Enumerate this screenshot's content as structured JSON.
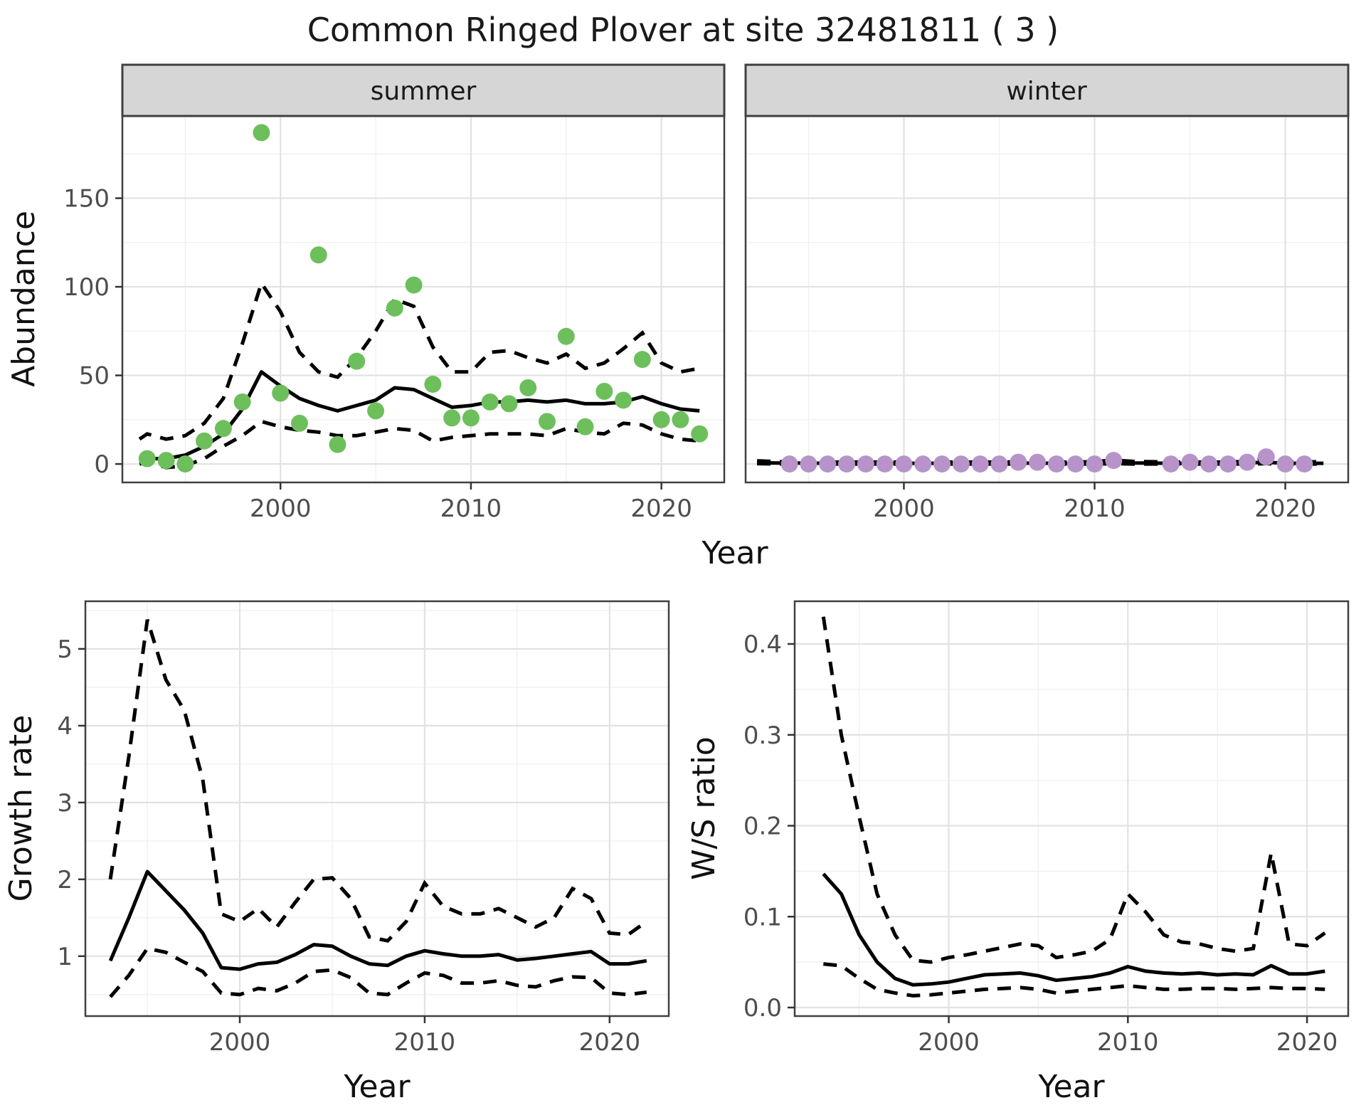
{
  "title": "Common Ringed Plover at site 32481811 ( 3 )",
  "facets": [
    "summer",
    "winter"
  ],
  "labels": {
    "abundance": "Abundance",
    "year": "Year",
    "growth": "Growth rate",
    "ws": "W/S ratio"
  },
  "colors": {
    "summer_point": "#6dbf5c",
    "winter_point": "#b793ca",
    "line": "#000000",
    "strip_bg": "#d6d6d6",
    "panel_border": "#404040",
    "grid_major": "#e2e2e2",
    "grid_minor": "#f0f0f0",
    "tick_mark": "#333333",
    "tick_text": "#4d4d4d",
    "title_text": "#1a1a1a"
  },
  "chart_data": [
    {
      "id": "abundance_summer",
      "type": "scatter",
      "facet_label": "summer",
      "xlabel": "Year",
      "ylabel": "Abundance",
      "xlim": [
        1991.7,
        2023.3
      ],
      "ylim": [
        -10.4,
        196.4
      ],
      "xticks": [
        2000,
        2010,
        2020
      ],
      "xtick_labels": [
        "2000",
        "2010",
        "2020"
      ],
      "xticks_minor": [
        1995,
        2005,
        2015
      ],
      "yticks": [
        0,
        50,
        100,
        150
      ],
      "ytick_labels": [
        "0",
        "50",
        "100",
        "150"
      ],
      "yticks_minor": [
        25,
        75,
        125,
        175
      ],
      "point_color_key": "summer_point",
      "points": {
        "x": [
          1993,
          1994,
          1995,
          1996,
          1997,
          1998,
          1999,
          2000,
          2001,
          2002,
          2003,
          2004,
          2005,
          2006,
          2007,
          2008,
          2009,
          2010,
          2011,
          2012,
          2013,
          2014,
          2015,
          2016,
          2017,
          2018,
          2019,
          2020,
          2021,
          2022
        ],
        "y": [
          3,
          2,
          0,
          13,
          20,
          35,
          187,
          40,
          23,
          118,
          11,
          58,
          30,
          88,
          101,
          45,
          26,
          26,
          35,
          34,
          43,
          24,
          72,
          21,
          41,
          36,
          59,
          25,
          25,
          17
        ]
      },
      "fit": {
        "x": [
          1992.6,
          1993,
          1994,
          1995,
          1996,
          1997,
          1998,
          1999,
          2000,
          2001,
          2002,
          2003,
          2004,
          2005,
          2006,
          2007,
          2008,
          2009,
          2010,
          2011,
          2012,
          2013,
          2014,
          2015,
          2016,
          2017,
          2018,
          2019,
          2020,
          2021,
          2022
        ],
        "y": [
          2,
          3,
          3,
          5,
          10,
          17,
          31,
          52,
          44,
          37,
          33,
          30,
          33,
          36,
          43,
          42,
          37,
          32,
          33,
          35,
          35,
          36,
          35,
          36,
          34,
          34,
          35,
          38,
          34,
          31,
          30
        ]
      },
      "ci_upper": {
        "x": [
          1992.6,
          1993,
          1994,
          1995,
          1996,
          1997,
          1998,
          1999,
          2000,
          2001,
          2002,
          2003,
          2004,
          2005,
          2006,
          2007,
          2008,
          2009,
          2010,
          2011,
          2012,
          2013,
          2014,
          2015,
          2016,
          2017,
          2018,
          2019,
          2020,
          2021,
          2022
        ],
        "y": [
          14,
          17,
          14,
          16,
          23,
          37,
          68,
          102,
          86,
          63,
          52,
          49,
          60,
          75,
          93,
          89,
          66,
          52,
          52,
          63,
          64,
          60,
          57,
          62,
          54,
          57,
          65,
          74,
          57,
          52,
          54
        ]
      },
      "ci_lower": {
        "x": [
          1992.6,
          1993,
          1994,
          1995,
          1996,
          1997,
          1998,
          1999,
          2000,
          2001,
          2002,
          2003,
          2004,
          2005,
          2006,
          2007,
          2008,
          2009,
          2010,
          2011,
          2012,
          2013,
          2014,
          2015,
          2016,
          2017,
          2018,
          2019,
          2020,
          2021,
          2022
        ],
        "y": [
          0,
          1,
          -2,
          -1,
          3,
          10,
          16,
          24,
          21,
          19,
          18,
          16,
          16,
          18,
          20,
          19,
          13,
          15,
          16,
          17,
          17,
          17,
          16,
          20,
          18,
          17,
          23,
          22,
          17,
          14,
          13
        ]
      }
    },
    {
      "id": "abundance_winter",
      "type": "scatter",
      "facet_label": "winter",
      "xlabel": "Year",
      "ylabel": "Abundance",
      "xlim": [
        1991.7,
        2023.3
      ],
      "ylim": [
        -10.4,
        196.4
      ],
      "xticks": [
        2000,
        2010,
        2020
      ],
      "xtick_labels": [
        "2000",
        "2010",
        "2020"
      ],
      "xticks_minor": [
        1995,
        2005,
        2015
      ],
      "yticks": [
        0,
        50,
        100,
        150
      ],
      "ytick_labels": [
        "0",
        "50",
        "100",
        "150"
      ],
      "yticks_minor": [
        25,
        75,
        125,
        175
      ],
      "point_color_key": "winter_point",
      "points": {
        "x": [
          1994,
          1995,
          1996,
          1997,
          1998,
          1999,
          2000,
          2001,
          2002,
          2003,
          2004,
          2005,
          2006,
          2007,
          2008,
          2009,
          2010,
          2011,
          2014,
          2015,
          2016,
          2017,
          2018,
          2019,
          2020,
          2021
        ],
        "y": [
          0,
          0,
          0,
          0,
          0,
          0,
          0,
          0,
          0,
          0,
          0,
          0,
          1,
          1,
          0,
          0,
          0,
          2,
          0,
          1,
          0,
          0,
          1,
          4,
          0,
          0
        ]
      },
      "fit": {
        "x": [
          1992.3,
          1993,
          1994,
          1995,
          1996,
          1997,
          1998,
          1999,
          2000,
          2001,
          2002,
          2003,
          2004,
          2005,
          2006,
          2007,
          2008,
          2009,
          2010,
          2011,
          2012,
          2013,
          2014,
          2015,
          2016,
          2017,
          2018,
          2019,
          2020,
          2021,
          2022
        ],
        "y": [
          0.7,
          0.6,
          0.5,
          0.5,
          0.4,
          0.4,
          0.4,
          0.4,
          0.4,
          0.4,
          0.4,
          0.4,
          0.4,
          0.4,
          0.5,
          0.5,
          0.4,
          0.4,
          0.5,
          1.0,
          0.6,
          0.5,
          0.4,
          0.4,
          0.4,
          0.4,
          0.6,
          1.0,
          0.4,
          0.4,
          0.4
        ]
      },
      "ci_upper": {
        "x": [
          1992.3,
          1993,
          1994,
          1995,
          1996,
          1997,
          1998,
          1999,
          2000,
          2001,
          2002,
          2003,
          2004,
          2005,
          2006,
          2007,
          2008,
          2009,
          2010,
          2011,
          2012,
          2013,
          2014,
          2015,
          2016,
          2017,
          2018,
          2019,
          2020,
          2021,
          2022
        ],
        "y": [
          1.8,
          1.5,
          1.2,
          1.2,
          1.1,
          1.1,
          1.1,
          1.1,
          1.1,
          1.1,
          1.1,
          1.1,
          1.1,
          1.1,
          1.2,
          1.2,
          1.1,
          1.1,
          1.3,
          2.2,
          1.5,
          1.3,
          1.1,
          1.1,
          1.1,
          1.1,
          1.5,
          3.2,
          1.2,
          1.2,
          1.3
        ]
      },
      "ci_lower": {
        "x": [
          1992.3,
          1993,
          1994,
          1995,
          1996,
          1997,
          1998,
          1999,
          2000,
          2001,
          2002,
          2003,
          2004,
          2005,
          2006,
          2007,
          2008,
          2009,
          2010,
          2011,
          2012,
          2013,
          2014,
          2015,
          2016,
          2017,
          2018,
          2019,
          2020,
          2021,
          2022
        ],
        "y": [
          0.2,
          0.1,
          0,
          0,
          0,
          0,
          0,
          0,
          0,
          0,
          0,
          0,
          0,
          0,
          0,
          0,
          0,
          0,
          0,
          0.2,
          0,
          0,
          0,
          0,
          0,
          0,
          0,
          0.2,
          0,
          0,
          0
        ]
      }
    },
    {
      "id": "growth_rate",
      "type": "line",
      "xlabel": "Year",
      "ylabel": "Growth rate",
      "xlim": [
        1991.65,
        2023.2
      ],
      "ylim": [
        0.22,
        5.62
      ],
      "xticks": [
        2000,
        2010,
        2020
      ],
      "xtick_labels": [
        "2000",
        "2010",
        "2020"
      ],
      "xticks_minor": [
        1995,
        2005,
        2015
      ],
      "yticks": [
        1,
        2,
        3,
        4,
        5
      ],
      "ytick_labels": [
        "1",
        "2",
        "3",
        "4",
        "5"
      ],
      "yticks_minor": [
        0.5,
        1.5,
        2.5,
        3.5,
        4.5,
        5.5
      ],
      "fit": {
        "x": [
          1993,
          1994,
          1995,
          1996,
          1997,
          1998,
          1999,
          2000,
          2001,
          2002,
          2003,
          2004,
          2005,
          2006,
          2007,
          2008,
          2009,
          2010,
          2011,
          2012,
          2013,
          2014,
          2015,
          2016,
          2017,
          2018,
          2019,
          2020,
          2021,
          2022
        ],
        "y": [
          0.94,
          1.5,
          2.1,
          1.85,
          1.6,
          1.3,
          0.85,
          0.83,
          0.9,
          0.92,
          1.02,
          1.15,
          1.13,
          1.0,
          0.9,
          0.88,
          1.0,
          1.07,
          1.03,
          1.0,
          1.0,
          1.02,
          0.95,
          0.97,
          1.0,
          1.03,
          1.06,
          0.9,
          0.9,
          0.94
        ]
      },
      "ci_upper": {
        "x": [
          1993,
          1994,
          1995,
          1996,
          1997,
          1998,
          1999,
          2000,
          2001,
          2002,
          2003,
          2004,
          2005,
          2006,
          2007,
          2008,
          2009,
          2010,
          2011,
          2012,
          2013,
          2014,
          2015,
          2016,
          2017,
          2018,
          2019,
          2020,
          2021,
          2022
        ],
        "y": [
          2.0,
          3.6,
          5.38,
          4.6,
          4.2,
          3.3,
          1.55,
          1.45,
          1.62,
          1.38,
          1.7,
          2.0,
          2.02,
          1.75,
          1.25,
          1.2,
          1.45,
          1.95,
          1.65,
          1.55,
          1.55,
          1.62,
          1.5,
          1.38,
          1.5,
          1.88,
          1.75,
          1.3,
          1.28,
          1.45
        ]
      },
      "ci_lower": {
        "x": [
          1993,
          1994,
          1995,
          1996,
          1997,
          1998,
          1999,
          2000,
          2001,
          2002,
          2003,
          2004,
          2005,
          2006,
          2007,
          2008,
          2009,
          2010,
          2011,
          2012,
          2013,
          2014,
          2015,
          2016,
          2017,
          2018,
          2019,
          2020,
          2021,
          2022
        ],
        "y": [
          0.47,
          0.75,
          1.1,
          1.05,
          0.92,
          0.8,
          0.52,
          0.5,
          0.58,
          0.55,
          0.65,
          0.8,
          0.82,
          0.72,
          0.52,
          0.5,
          0.65,
          0.78,
          0.75,
          0.65,
          0.65,
          0.68,
          0.62,
          0.6,
          0.68,
          0.73,
          0.72,
          0.52,
          0.5,
          0.53
        ]
      }
    },
    {
      "id": "ws_ratio",
      "type": "line",
      "xlabel": "Year",
      "ylabel": "W/S ratio",
      "xlim": [
        1991.4,
        2022.3
      ],
      "ylim": [
        -0.0094,
        0.447
      ],
      "xticks": [
        2000,
        2010,
        2020
      ],
      "xtick_labels": [
        "2000",
        "2010",
        "2020"
      ],
      "xticks_minor": [
        1995,
        2005,
        2015
      ],
      "yticks": [
        0,
        0.1,
        0.2,
        0.3,
        0.4
      ],
      "ytick_labels": [
        "0.0",
        "0.1",
        "0.2",
        "0.3",
        "0.4"
      ],
      "yticks_minor": [
        0.05,
        0.15,
        0.25,
        0.35,
        0.45
      ],
      "fit": {
        "x": [
          1993,
          1994,
          1995,
          1996,
          1997,
          1998,
          1999,
          2000,
          2001,
          2002,
          2003,
          2004,
          2005,
          2006,
          2007,
          2008,
          2009,
          2010,
          2011,
          2012,
          2013,
          2014,
          2015,
          2016,
          2017,
          2018,
          2019,
          2020,
          2021
        ],
        "y": [
          0.147,
          0.125,
          0.08,
          0.05,
          0.032,
          0.025,
          0.026,
          0.028,
          0.032,
          0.036,
          0.037,
          0.038,
          0.035,
          0.03,
          0.032,
          0.034,
          0.038,
          0.045,
          0.04,
          0.038,
          0.037,
          0.038,
          0.036,
          0.037,
          0.036,
          0.046,
          0.037,
          0.037,
          0.04
        ]
      },
      "ci_upper": {
        "x": [
          1993,
          1994,
          1995,
          1996,
          1997,
          1998,
          1999,
          2000,
          2001,
          2002,
          2003,
          2004,
          2005,
          2006,
          2007,
          2008,
          2009,
          2010,
          2011,
          2012,
          2013,
          2014,
          2015,
          2016,
          2017,
          2018,
          2019,
          2020,
          2021
        ],
        "y": [
          0.43,
          0.3,
          0.21,
          0.125,
          0.08,
          0.052,
          0.05,
          0.055,
          0.058,
          0.062,
          0.066,
          0.07,
          0.068,
          0.055,
          0.058,
          0.062,
          0.075,
          0.125,
          0.105,
          0.08,
          0.072,
          0.07,
          0.065,
          0.062,
          0.065,
          0.17,
          0.07,
          0.068,
          0.082
        ]
      },
      "ci_lower": {
        "x": [
          1993,
          1994,
          1995,
          1996,
          1997,
          1998,
          1999,
          2000,
          2001,
          2002,
          2003,
          2004,
          2005,
          2006,
          2007,
          2008,
          2009,
          2010,
          2011,
          2012,
          2013,
          2014,
          2015,
          2016,
          2017,
          2018,
          2019,
          2020,
          2021
        ],
        "y": [
          0.048,
          0.046,
          0.032,
          0.02,
          0.016,
          0.013,
          0.014,
          0.016,
          0.018,
          0.02,
          0.021,
          0.022,
          0.02,
          0.016,
          0.018,
          0.02,
          0.022,
          0.024,
          0.022,
          0.02,
          0.02,
          0.021,
          0.021,
          0.02,
          0.021,
          0.022,
          0.021,
          0.021,
          0.02
        ]
      }
    }
  ]
}
